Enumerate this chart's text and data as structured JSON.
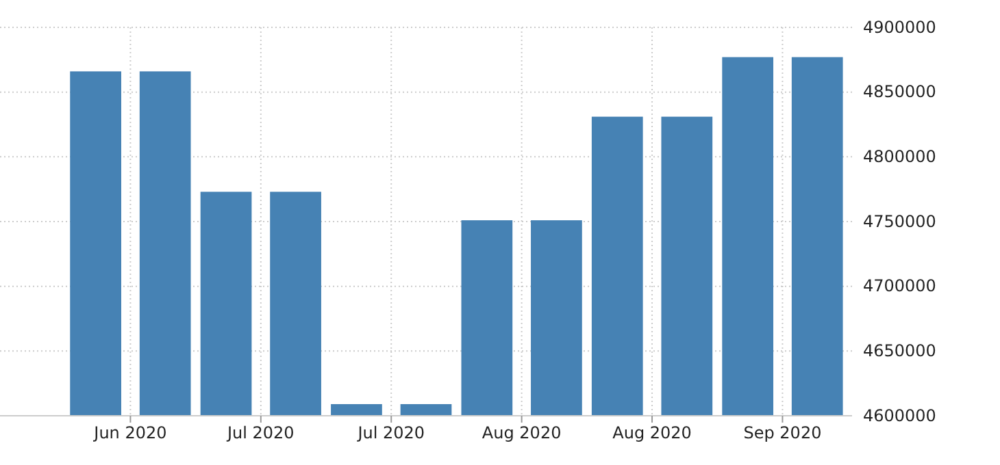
{
  "chart_data": {
    "type": "bar",
    "x": [
      "2020-06-24",
      "2020-07-02",
      "2020-07-09",
      "2020-07-17",
      "2020-07-24",
      "2020-08-01",
      "2020-08-08",
      "2020-08-16",
      "2020-08-23",
      "2020-08-31",
      "2020-09-07",
      "2020-09-15"
    ],
    "values": [
      4866000,
      4866000,
      4773000,
      4773000,
      4609000,
      4609000,
      4751000,
      4751000,
      4831000,
      4831000,
      4877000,
      4877000
    ],
    "color": "#4682b4",
    "xlim": [
      "2020-06-13",
      "2020-09-19"
    ],
    "xticks": [
      {
        "value": "2020-06-28",
        "label": "Jun 2020"
      },
      {
        "value": "2020-07-13",
        "label": "Jul 2020"
      },
      {
        "value": "2020-07-28",
        "label": "Jul 2020"
      },
      {
        "value": "2020-08-12",
        "label": "Aug 2020"
      },
      {
        "value": "2020-08-27",
        "label": "Aug 2020"
      },
      {
        "value": "2020-09-11",
        "label": "Sep 2020"
      }
    ],
    "ylim": [
      4600000,
      4900000
    ],
    "yticks": [
      4600000,
      4650000,
      4700000,
      4750000,
      4800000,
      4850000,
      4900000
    ],
    "grid": true
  }
}
